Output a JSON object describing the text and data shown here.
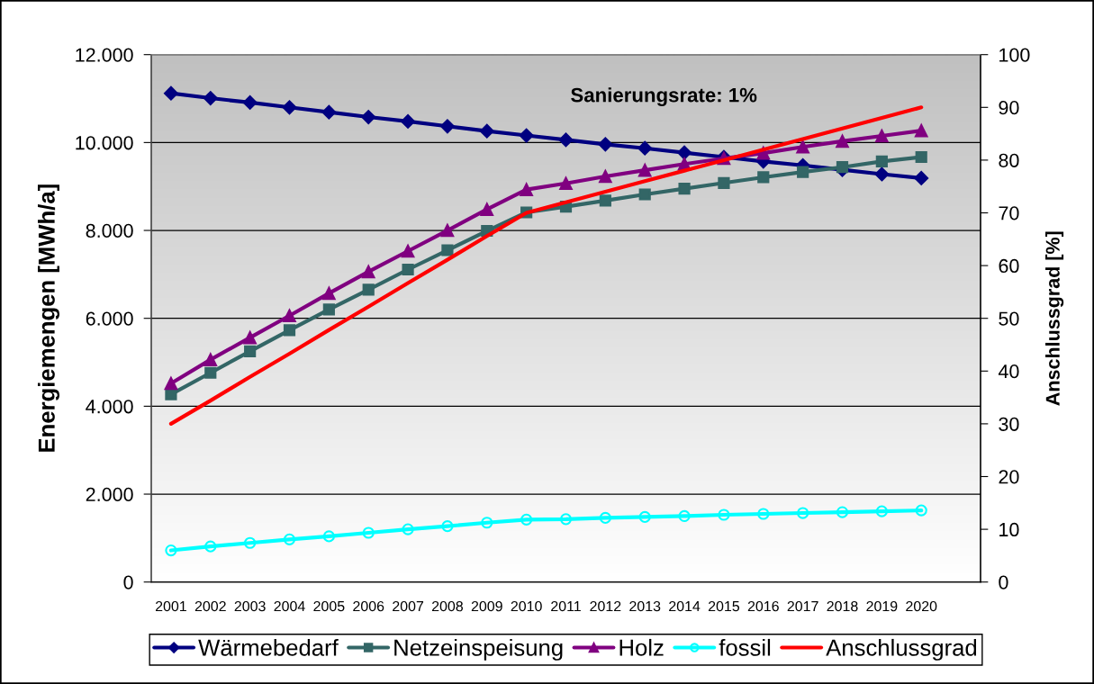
{
  "chart_data": {
    "type": "line",
    "categories": [
      "2001",
      "2002",
      "2003",
      "2004",
      "2005",
      "2006",
      "2007",
      "2008",
      "2009",
      "2010",
      "2011",
      "2012",
      "2013",
      "2014",
      "2015",
      "2016",
      "2017",
      "2018",
      "2019",
      "2020",
      null
    ],
    "series": [
      {
        "name": "Wärmebedarf",
        "color": "#000080",
        "marker": "diamond",
        "values": [
          11120,
          11010,
          10910,
          10800,
          10690,
          10580,
          10480,
          10370,
          10260,
          10160,
          10060,
          9960,
          9870,
          9770,
          9670,
          9570,
          9480,
          9380,
          9280,
          9190,
          null
        ]
      },
      {
        "name": "Netzeinspeisung",
        "color": "#336666",
        "marker": "square",
        "values": [
          4270,
          4760,
          5250,
          5730,
          6200,
          6650,
          7110,
          7550,
          7990,
          8410,
          8540,
          8680,
          8820,
          8950,
          9080,
          9210,
          9330,
          9440,
          9570,
          9670,
          null
        ]
      },
      {
        "name": "Holz",
        "color": "#800080",
        "marker": "triangle",
        "values": [
          4520,
          5060,
          5560,
          6060,
          6570,
          7060,
          7530,
          8000,
          8480,
          8930,
          9070,
          9230,
          9370,
          9510,
          9640,
          9760,
          9900,
          10030,
          10150,
          10270,
          null
        ]
      },
      {
        "name": "fossil",
        "color": "#00ffff",
        "marker": "circle",
        "values": [
          720,
          810,
          890,
          970,
          1040,
          1120,
          1200,
          1270,
          1350,
          1420,
          1430,
          1460,
          1480,
          1500,
          1530,
          1550,
          1570,
          1590,
          1610,
          1630,
          null
        ]
      },
      {
        "name": "Anschlussgrad",
        "color": "#ff0000",
        "axis": "y2",
        "values": [
          30,
          34.4,
          38.9,
          43.3,
          47.8,
          52.2,
          56.7,
          61.1,
          65.6,
          70,
          72,
          74,
          76,
          78,
          80,
          82,
          84,
          86,
          88,
          90,
          null
        ]
      }
    ],
    "ylabel": "Energiemengen [MWh/a]",
    "y2label": "Anschlussgrad [%]",
    "ylim": [
      0,
      12000
    ],
    "yticks": [
      0,
      {
        "value": 2000,
        "label": "2.000"
      },
      {
        "value": 4000,
        "label": "4.000"
      },
      {
        "value": 6000,
        "label": "6.000"
      },
      {
        "value": 8000,
        "label": "8.000"
      },
      {
        "value": 10000,
        "label": "10.000"
      },
      {
        "value": 12000,
        "label": "12.000"
      }
    ],
    "y2lim": [
      0,
      100
    ],
    "y2ticks": [
      0,
      10,
      20,
      30,
      40,
      50,
      60,
      70,
      80,
      90,
      100
    ],
    "annotations": [
      "Sanierungsrate: 1%"
    ],
    "grid": "y",
    "legend": "bottom"
  }
}
